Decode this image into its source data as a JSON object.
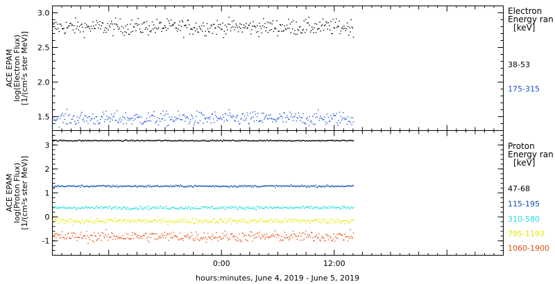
{
  "chart_data": [
    {
      "type": "scatter",
      "panel": "electron",
      "ylabel": [
        "ACE EPAM",
        "log(Electron Flux)",
        "[1/(cm²s ster MeV)]"
      ],
      "ylim": [
        1.3,
        3.1
      ],
      "yticks": [
        1.5,
        2.0,
        2.5,
        3.0
      ],
      "ytick_labels": [
        "1.5",
        "2.0",
        "2.5",
        "3.0"
      ],
      "legend": {
        "title": [
          "Electron",
          "Energy ran",
          "[keV]"
        ],
        "placement": "right"
      },
      "series": [
        {
          "name": "38-53",
          "color": "#000000",
          "level": 2.8,
          "noise": 0.08
        },
        {
          "name": "175-315",
          "color": "#1a4fd6",
          "level": 1.48,
          "noise": 0.07
        }
      ]
    },
    {
      "type": "scatter",
      "panel": "proton",
      "ylabel": [
        "ACE EPAM",
        "log(Proton Flux)",
        "[1/(cm²s ster MeV)]"
      ],
      "ylim": [
        -1.6,
        3.6
      ],
      "yticks": [
        -1,
        0,
        1,
        2,
        3
      ],
      "ytick_labels": [
        "-1",
        "0",
        "1",
        "2",
        "3"
      ],
      "legend": {
        "title": [
          "Proton",
          "Energy ran",
          "[keV]"
        ],
        "placement": "right"
      },
      "series": [
        {
          "name": "47-68",
          "color": "#000000",
          "level": 3.2,
          "noise": 0.02
        },
        {
          "name": "115-195",
          "color": "#0b4fa8",
          "level": 1.3,
          "noise": 0.03
        },
        {
          "name": "310-580",
          "color": "#22dede",
          "level": 0.4,
          "noise": 0.05
        },
        {
          "name": "795-1193",
          "color": "#e6e600",
          "level": -0.15,
          "noise": 0.08
        },
        {
          "name": "1060-1900",
          "color": "#e85010",
          "level": -0.8,
          "noise": 0.15
        }
      ]
    }
  ],
  "x_axis": {
    "range_hours": [
      -18,
      30
    ],
    "data_end_hour": 14,
    "ticks": [
      0,
      12
    ],
    "tick_labels": [
      "0:00",
      "12:00"
    ],
    "xlabel": "hours:minutes, June  4, 2019 - June  5, 2019"
  }
}
